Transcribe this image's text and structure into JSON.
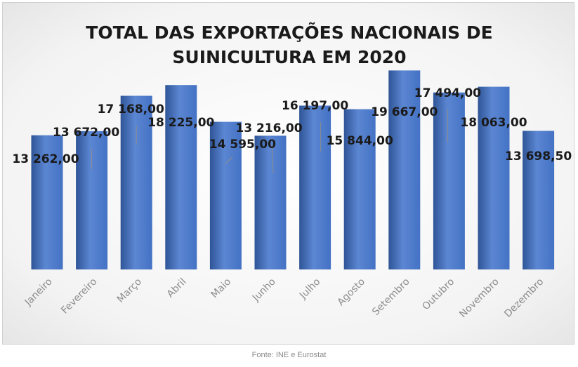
{
  "chart_data": {
    "type": "bar",
    "title_lines": [
      "TOTAL DAS EXPORTAÇÕES NACIONAIS DE",
      "SUINICULTURA EM 2020"
    ],
    "categories": [
      "Janeiro",
      "Fevereiro",
      "Março",
      "Abril",
      "Maio",
      "Junho",
      "Julho",
      "Agosto",
      "Setembro",
      "Outubro",
      "Novembro",
      "Dezembro"
    ],
    "values": [
      13262,
      13672,
      17168,
      18225,
      14595,
      13216,
      16197,
      15844,
      19667,
      17494,
      18063,
      13698.5
    ],
    "value_labels": [
      "13 262,00",
      "13 672,00",
      "17 168,00",
      "18 225,00",
      "14 595,00",
      "13 216,00",
      "16 197,00",
      "15 844,00",
      "19 667,00",
      "17 494,00",
      "18 063,00",
      "13 698,50"
    ],
    "ylim": [
      0,
      21500
    ],
    "grid": false,
    "legend": "none",
    "xlabel": "",
    "ylabel": "",
    "colors": {
      "bar": "#4472c4",
      "bar_light": "#5b86d2",
      "bar_dark": "#2f5597",
      "leader": "#8c8c8c",
      "title": "#1a1a1a",
      "label": "#1a1a1a",
      "tick": "#8c8c8c"
    }
  },
  "caption": "Fonte: INE e Eurostat"
}
